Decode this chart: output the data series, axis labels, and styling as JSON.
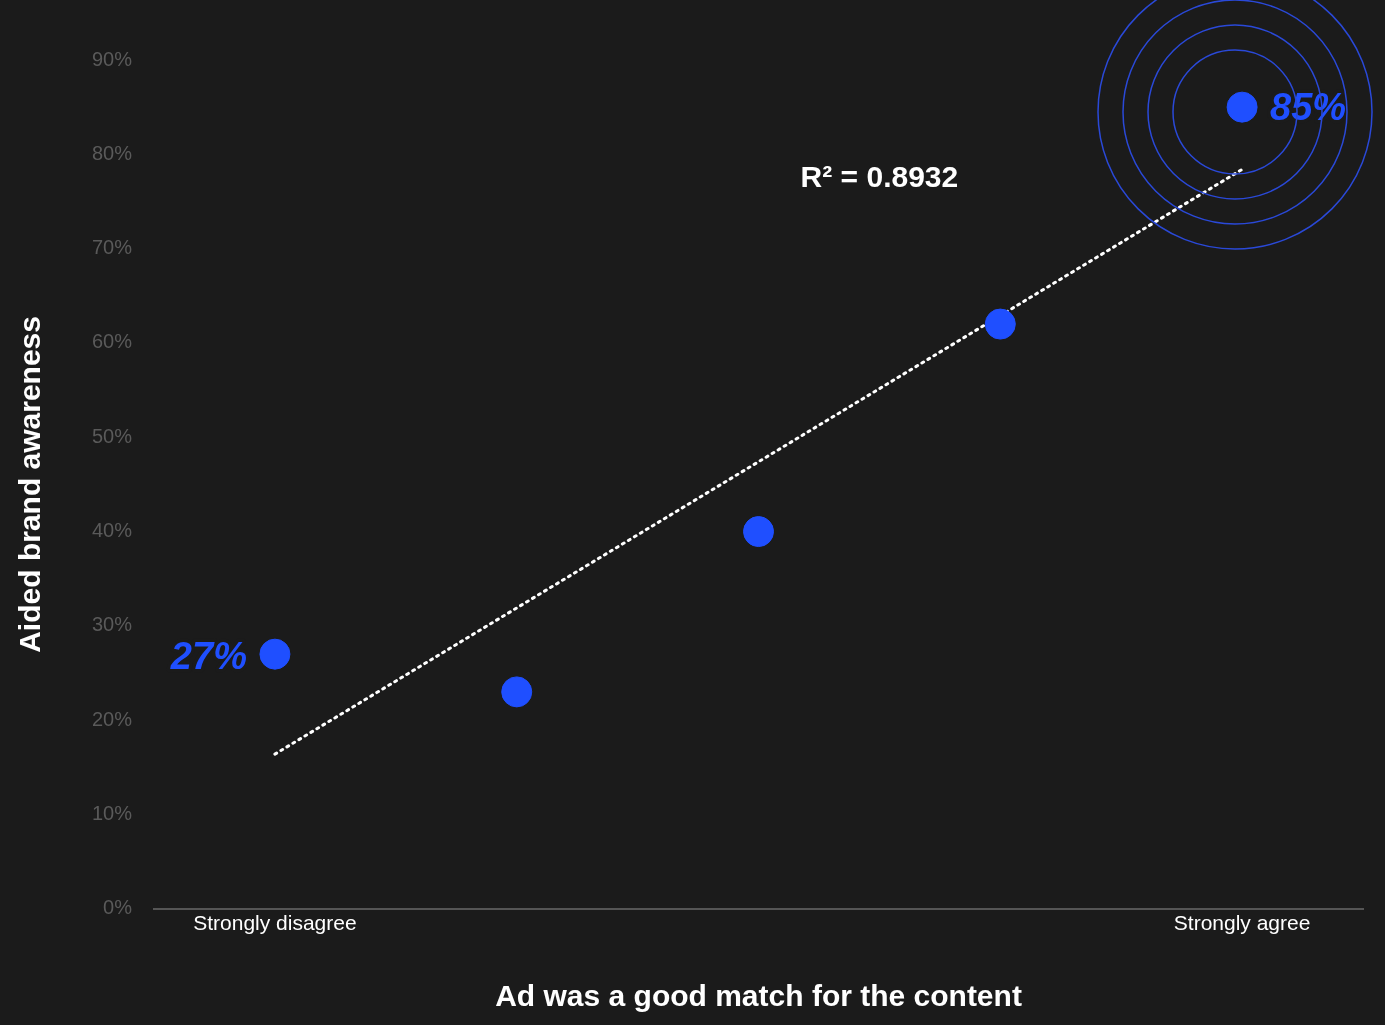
{
  "chart_data": {
    "type": "scatter",
    "xlabel": "Ad was a good match for the content",
    "ylabel": "Aided brand awareness",
    "categories": [
      "Strongly disagree",
      null,
      null,
      null,
      "Strongly agree"
    ],
    "series": [
      {
        "color": "#1f4fff",
        "values": [
          27,
          23,
          40,
          62,
          85
        ],
        "value_labels": [
          "27%",
          null,
          null,
          null,
          "85%"
        ],
        "marker": "circle"
      },
      {
        "type": "line",
        "color": "#ffffff",
        "values": [
          16.4,
          null,
          null,
          null,
          78.4
        ],
        "marker": "none",
        "line_style": "dotted"
      }
    ],
    "ylim": [
      0,
      90
    ],
    "yticks": [
      {
        "value": 0,
        "label": "0%"
      },
      {
        "value": 10,
        "label": "10%"
      },
      {
        "value": 20,
        "label": "20%"
      },
      {
        "value": 30,
        "label": "30%"
      },
      {
        "value": 40,
        "label": "40%"
      },
      {
        "value": 50,
        "label": "50%"
      },
      {
        "value": 60,
        "label": "60%"
      },
      {
        "value": 70,
        "label": "70%"
      },
      {
        "value": 80,
        "label": "80%"
      },
      {
        "value": 90,
        "label": "90%"
      }
    ],
    "annotations": [
      "R² = 0.8932"
    ],
    "grid": false,
    "legend": false
  }
}
